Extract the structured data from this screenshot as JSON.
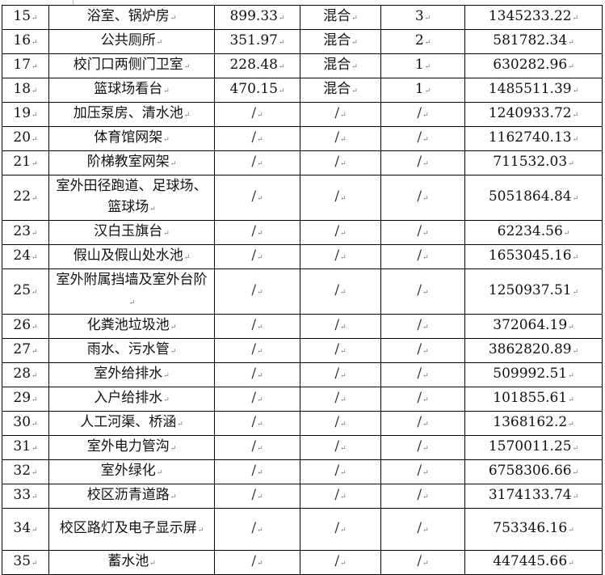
{
  "table": {
    "rows": [
      {
        "no": "15",
        "name": "浴室、锅炉房",
        "area": "899.33",
        "structure": "混合",
        "floors": "3",
        "value": "1345233.22"
      },
      {
        "no": "16",
        "name": "公共厕所",
        "area": "351.97",
        "structure": "混合",
        "floors": "2",
        "value": "581782.34"
      },
      {
        "no": "17",
        "name": "校门口两侧门卫室",
        "area": "228.48",
        "structure": "混合",
        "floors": "1",
        "value": "630282.96"
      },
      {
        "no": "18",
        "name": "篮球场看台",
        "area": "470.15",
        "structure": "混合",
        "floors": "1",
        "value": "1485511.39"
      },
      {
        "no": "19",
        "name": "加压泵房、清水池",
        "area": "/",
        "structure": "/",
        "floors": "/",
        "value": "1240933.72"
      },
      {
        "no": "20",
        "name": "体育馆网架",
        "area": "/",
        "structure": "/",
        "floors": "/",
        "value": "1162740.13"
      },
      {
        "no": "21",
        "name": "阶梯教室网架",
        "area": "/",
        "structure": "/",
        "floors": "/",
        "value": "711532.03"
      },
      {
        "no": "22",
        "name": "室外田径跑道、足球场、篮球场",
        "area": "/",
        "structure": "/",
        "floors": "/",
        "value": "5051864.84",
        "tall": true
      },
      {
        "no": "23",
        "name": "汉白玉旗台",
        "area": "/",
        "structure": "/",
        "floors": "/",
        "value": "62234.56"
      },
      {
        "no": "24",
        "name": "假山及假山处水池",
        "area": "/",
        "structure": "/",
        "floors": "/",
        "value": "1653045.16"
      },
      {
        "no": "25",
        "name": "室外附属挡墙及室外台阶",
        "area": "/",
        "structure": "/",
        "floors": "/",
        "value": "1250937.51",
        "tall": true
      },
      {
        "no": "26",
        "name": "化粪池垃圾池",
        "area": "/",
        "structure": "/",
        "floors": "/",
        "value": "372064.19"
      },
      {
        "no": "27",
        "name": "雨水、污水管",
        "area": "/",
        "structure": "/",
        "floors": "/",
        "value": "3862820.89"
      },
      {
        "no": "28",
        "name": "室外给排水",
        "area": "/",
        "structure": "/",
        "floors": "/",
        "value": "509992.51"
      },
      {
        "no": "29",
        "name": "入户给排水",
        "area": "/",
        "structure": "/",
        "floors": "/",
        "value": "101855.61"
      },
      {
        "no": "30",
        "name": "人工河渠、桥涵",
        "area": "/",
        "structure": "/",
        "floors": "/",
        "value": "1368162.2"
      },
      {
        "no": "31",
        "name": "室外电力管沟",
        "area": "/",
        "structure": "/",
        "floors": "/",
        "value": "1570011.25"
      },
      {
        "no": "32",
        "name": "室外绿化",
        "area": "/",
        "structure": "/",
        "floors": "/",
        "value": "6758306.66"
      },
      {
        "no": "33",
        "name": "校区沥青道路",
        "area": "/",
        "structure": "/",
        "floors": "/",
        "value": "3174133.74"
      },
      {
        "no": "34",
        "name": "校区路灯及电子显示屏",
        "area": "/",
        "structure": "/",
        "floors": "/",
        "value": "753346.16",
        "tall": true
      },
      {
        "no": "35",
        "name": "蓄水池",
        "area": "/",
        "structure": "/",
        "floors": "/",
        "value": "447445.66"
      }
    ]
  }
}
